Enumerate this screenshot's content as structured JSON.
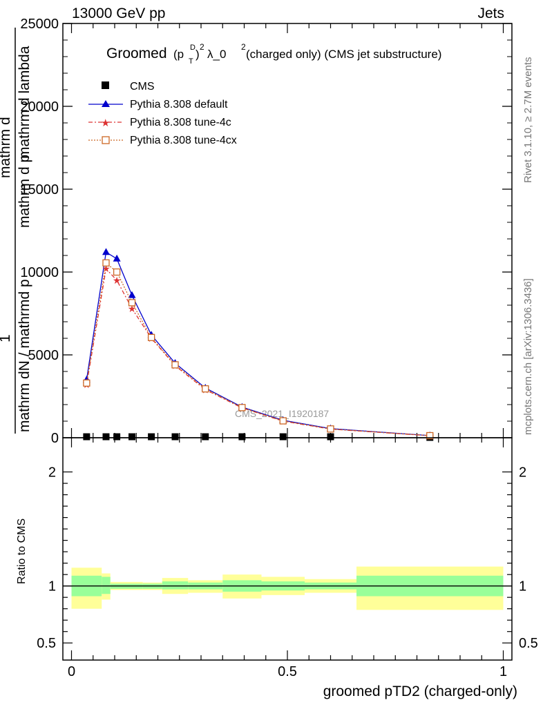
{
  "header": {
    "energy_label": "13000 GeV pp",
    "category_label": "Jets"
  },
  "side_text": {
    "rivet": "Rivet 3.1.10, ≥ 2.7M events",
    "mcplots": "mcplots.cern.ch [arXiv:1306.3436]"
  },
  "colors": {
    "cms": "#000000",
    "default": "#0000cc",
    "tune4c": "#dd3333",
    "tune4cx": "#cc6622",
    "band_inner": "#99ff99",
    "band_outer": "#ffff99"
  },
  "chart_data": [
    {
      "type": "line",
      "title": "Groomed (p_T^D)^2 λ_0^2  (charged only) (CMS jet substructure)",
      "title_main": "Groomed",
      "title_tail": "λ_0",
      "title_end": "  (charged only) (CMS jet substructure)",
      "ylabel_top": "mathrm d",
      "ylabel_sup": "2",
      "ylabel_mid": "N",
      "ylabel_denom": "mathrm d p",
      "ylabel_denom_sub": "T",
      "ylabel_denom_tail": " mathrm d lambda",
      "ylabel_lower": "1",
      "ylabel_lower_den": "mathrm dN / mathrmd p",
      "ylabel_lower_sub": "T",
      "ylabel_lower_tail": " mathrm d p",
      "watermark": "CMS_2021_I1920187",
      "xlim": [
        0,
        1
      ],
      "ylim": [
        0,
        25000
      ],
      "y_ticks": [
        0,
        5000,
        10000,
        15000,
        20000,
        25000
      ],
      "y_tick_labels": [
        "0",
        "5000",
        "10000",
        "15000",
        "20000",
        "25000"
      ],
      "legend_position": "top-left",
      "series": [
        {
          "name": "CMS",
          "style": "square",
          "x": [
            0.035,
            0.08,
            0.105,
            0.14,
            0.185,
            0.24,
            0.31,
            0.395,
            0.49,
            0.6,
            0.83
          ],
          "y": [
            60,
            60,
            60,
            60,
            60,
            60,
            60,
            60,
            60,
            60,
            20
          ]
        },
        {
          "name": "Pythia 8.308 default",
          "style": "triangle",
          "x": [
            0.035,
            0.08,
            0.105,
            0.14,
            0.185,
            0.24,
            0.31,
            0.395,
            0.49,
            0.6,
            0.83
          ],
          "y": [
            3500,
            11200,
            10800,
            8600,
            6200,
            4500,
            3000,
            1850,
            1050,
            550,
            130
          ]
        },
        {
          "name": "Pythia 8.308 tune-4c",
          "style": "star",
          "x": [
            0.035,
            0.08,
            0.105,
            0.14,
            0.185,
            0.24,
            0.31,
            0.395,
            0.49,
            0.6,
            0.83
          ],
          "y": [
            3200,
            10200,
            9500,
            7800,
            6000,
            4350,
            2900,
            1800,
            1000,
            520,
            120
          ]
        },
        {
          "name": "Pythia 8.308 tune-4cx",
          "style": "open-square",
          "x": [
            0.035,
            0.08,
            0.105,
            0.14,
            0.185,
            0.24,
            0.31,
            0.395,
            0.49,
            0.6,
            0.83
          ],
          "y": [
            3300,
            10550,
            10000,
            8150,
            6050,
            4400,
            2950,
            1820,
            1020,
            530,
            125
          ]
        }
      ]
    },
    {
      "type": "area",
      "ylabel": "Ratio to CMS",
      "xlabel": "groomed pTD2 (charged-only)",
      "xlim": [
        -0.02,
        1.02
      ],
      "ylim": [
        0.35,
        2.3
      ],
      "x_ticks": [
        0,
        0.5,
        1
      ],
      "x_tick_labels": [
        "0",
        "0.5",
        "1"
      ],
      "y_ticks": [
        0.5,
        1,
        2
      ],
      "y_tick_labels": [
        "0.5",
        "1",
        "2"
      ],
      "bins": [
        {
          "x0": 0.0,
          "x1": 0.07,
          "inner": [
            0.91,
            1.09
          ],
          "outer": [
            0.8,
            1.16
          ]
        },
        {
          "x0": 0.07,
          "x1": 0.09,
          "inner": [
            0.93,
            1.08
          ],
          "outer": [
            0.88,
            1.11
          ]
        },
        {
          "x0": 0.09,
          "x1": 0.12,
          "inner": [
            0.975,
            1.02
          ],
          "outer": [
            0.965,
            1.035
          ]
        },
        {
          "x0": 0.12,
          "x1": 0.165,
          "inner": [
            0.975,
            1.02
          ],
          "outer": [
            0.965,
            1.035
          ]
        },
        {
          "x0": 0.165,
          "x1": 0.21,
          "inner": [
            0.975,
            1.02
          ],
          "outer": [
            0.965,
            1.03
          ]
        },
        {
          "x0": 0.21,
          "x1": 0.27,
          "inner": [
            0.97,
            1.04
          ],
          "outer": [
            0.93,
            1.07
          ]
        },
        {
          "x0": 0.27,
          "x1": 0.35,
          "inner": [
            0.97,
            1.03
          ],
          "outer": [
            0.94,
            1.05
          ]
        },
        {
          "x0": 0.35,
          "x1": 0.44,
          "inner": [
            0.95,
            1.05
          ],
          "outer": [
            0.89,
            1.1
          ]
        },
        {
          "x0": 0.44,
          "x1": 0.54,
          "inner": [
            0.96,
            1.04
          ],
          "outer": [
            0.92,
            1.08
          ]
        },
        {
          "x0": 0.54,
          "x1": 0.66,
          "inner": [
            0.97,
            1.03
          ],
          "outer": [
            0.94,
            1.06
          ]
        },
        {
          "x0": 0.66,
          "x1": 1.0,
          "inner": [
            0.91,
            1.09
          ],
          "outer": [
            0.79,
            1.17
          ]
        }
      ],
      "reference": 1
    }
  ]
}
